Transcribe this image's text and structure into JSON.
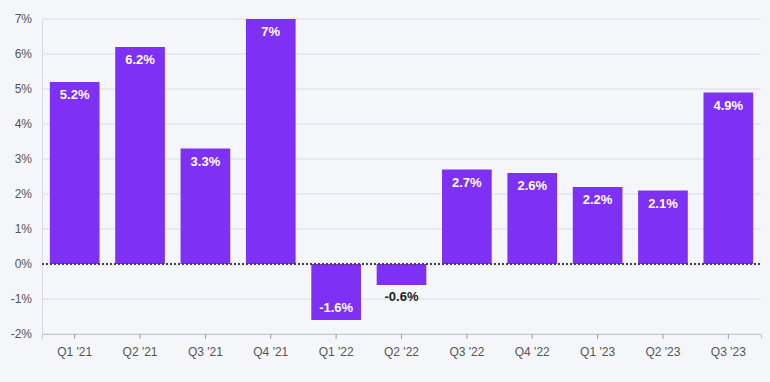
{
  "chart_data": {
    "type": "bar",
    "categories": [
      "Q1 '21",
      "Q2 '21",
      "Q3 '21",
      "Q4 '21",
      "Q1 '22",
      "Q2 '22",
      "Q3 '22",
      "Q4 '22",
      "Q1 '23",
      "Q2 '23",
      "Q3 '23"
    ],
    "values": [
      5.2,
      6.2,
      3.3,
      7,
      -1.6,
      -0.6,
      2.7,
      2.6,
      2.2,
      2.1,
      4.9
    ],
    "value_labels": [
      "5.2%",
      "6.2%",
      "3.3%",
      "7%",
      "-1.6%",
      "-0.6%",
      "2.7%",
      "2.6%",
      "2.2%",
      "2.1%",
      "4.9%"
    ],
    "color": "#7e30f5",
    "ylim": [
      -2,
      7
    ],
    "yticks": [
      {
        "value": -2,
        "label": "-2%"
      },
      {
        "value": -1,
        "label": "-1%"
      },
      {
        "value": 0,
        "label": "0%"
      },
      {
        "value": 1,
        "label": "1%"
      },
      {
        "value": 2,
        "label": "2%"
      },
      {
        "value": 3,
        "label": "3%"
      },
      {
        "value": 4,
        "label": "4%"
      },
      {
        "value": 5,
        "label": "5%"
      },
      {
        "value": 6,
        "label": "6%"
      },
      {
        "value": 7,
        "label": "7%"
      }
    ],
    "grid": true,
    "data_labels": true
  }
}
